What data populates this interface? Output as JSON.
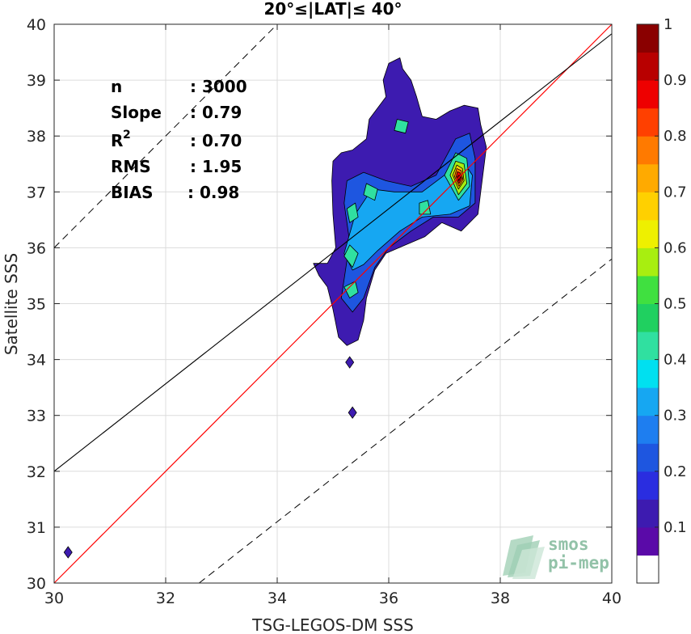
{
  "chart_data": {
    "type": "contour-scatter",
    "title": "20°≤|LAT|≤ 40°",
    "xlabel": "TSG-LEGOS-DM SSS",
    "ylabel": "Satellite SSS",
    "xlim": [
      30,
      40
    ],
    "ylim": [
      30,
      40
    ],
    "xticks": [
      "30",
      "32",
      "34",
      "36",
      "38",
      "40"
    ],
    "yticks": [
      "30",
      "31",
      "32",
      "33",
      "34",
      "35",
      "36",
      "37",
      "38",
      "39",
      "40"
    ],
    "grid": true,
    "stats": [
      {
        "label": "n",
        "value": ": 3000"
      },
      {
        "label": "Slope",
        "value": ": 0.79"
      },
      {
        "label": "R",
        "value": ": 0.70",
        "superscript": "2"
      },
      {
        "label": "RMS",
        "value": ": 1.95"
      },
      {
        "label": "BIAS",
        "value": ": 0.98"
      }
    ],
    "reference_lines": {
      "identity": {
        "slope": 1,
        "intercept": 0,
        "color": "#ff0000",
        "style": "solid"
      },
      "fit": {
        "x": [
          30,
          40
        ],
        "y": [
          32.0,
          39.83
        ],
        "color": "#000000",
        "style": "solid"
      },
      "upper_bound": {
        "x": [
          30,
          34.0
        ],
        "y": [
          36.0,
          40.0
        ],
        "style": "dashed"
      },
      "lower_bound": {
        "x": [
          32.6,
          40
        ],
        "y": [
          30.0,
          35.8
        ],
        "style": "dashed"
      }
    },
    "density_levels": [
      {
        "level": 0.05,
        "color": "#3d1bb0",
        "polygon": [
          [
            34.65,
            35.72
          ],
          [
            34.9,
            35.72
          ],
          [
            35.05,
            36.0
          ],
          [
            35.0,
            36.6
          ],
          [
            34.98,
            37.2
          ],
          [
            35.0,
            37.55
          ],
          [
            35.15,
            37.7
          ],
          [
            35.35,
            37.75
          ],
          [
            35.6,
            37.95
          ],
          [
            35.65,
            38.3
          ],
          [
            35.8,
            38.5
          ],
          [
            35.95,
            38.7
          ],
          [
            35.9,
            39.0
          ],
          [
            36.0,
            39.3
          ],
          [
            36.2,
            39.4
          ],
          [
            36.25,
            39.2
          ],
          [
            36.4,
            39.0
          ],
          [
            36.5,
            38.7
          ],
          [
            36.6,
            38.35
          ],
          [
            36.85,
            38.3
          ],
          [
            37.1,
            38.45
          ],
          [
            37.35,
            38.55
          ],
          [
            37.6,
            38.5
          ],
          [
            37.65,
            38.2
          ],
          [
            37.75,
            37.8
          ],
          [
            37.7,
            37.4
          ],
          [
            37.65,
            37.0
          ],
          [
            37.6,
            36.6
          ],
          [
            37.3,
            36.3
          ],
          [
            36.95,
            36.45
          ],
          [
            36.65,
            36.2
          ],
          [
            36.3,
            36.05
          ],
          [
            35.95,
            35.9
          ],
          [
            35.75,
            35.6
          ],
          [
            35.6,
            35.1
          ],
          [
            35.55,
            34.7
          ],
          [
            35.45,
            34.35
          ],
          [
            35.25,
            34.25
          ],
          [
            35.1,
            34.4
          ],
          [
            35.0,
            34.9
          ],
          [
            34.9,
            35.3
          ],
          [
            34.75,
            35.5
          ]
        ]
      },
      {
        "level": 0.15,
        "color": "#1e56e0",
        "polygon": [
          [
            35.15,
            35.1
          ],
          [
            35.3,
            36.1
          ],
          [
            35.2,
            36.8
          ],
          [
            35.25,
            37.2
          ],
          [
            35.55,
            37.35
          ],
          [
            35.95,
            37.2
          ],
          [
            36.4,
            37.1
          ],
          [
            36.85,
            37.3
          ],
          [
            37.2,
            37.95
          ],
          [
            37.45,
            38.05
          ],
          [
            37.55,
            37.6
          ],
          [
            37.55,
            36.8
          ],
          [
            37.25,
            36.55
          ],
          [
            36.8,
            36.55
          ],
          [
            36.4,
            36.3
          ],
          [
            36.0,
            36.0
          ],
          [
            35.75,
            35.65
          ],
          [
            35.55,
            35.1
          ],
          [
            35.35,
            34.85
          ]
        ]
      },
      {
        "level": 0.3,
        "color": "#16a7f2",
        "polygon": [
          [
            35.2,
            35.9
          ],
          [
            35.4,
            36.6
          ],
          [
            35.7,
            37.05
          ],
          [
            36.1,
            37.0
          ],
          [
            36.6,
            37.0
          ],
          [
            37.0,
            37.3
          ],
          [
            37.3,
            37.6
          ],
          [
            37.5,
            37.3
          ],
          [
            37.45,
            36.75
          ],
          [
            37.1,
            36.6
          ],
          [
            36.6,
            36.55
          ],
          [
            36.2,
            36.3
          ],
          [
            35.8,
            35.95
          ],
          [
            35.55,
            35.7
          ],
          [
            35.35,
            35.6
          ]
        ]
      },
      {
        "level": 0.45,
        "color": "#30e0a0",
        "polygon": [
          [
            35.2,
            35.3
          ],
          [
            35.3,
            35.1
          ],
          [
            35.45,
            35.2
          ],
          [
            35.4,
            35.4
          ]
        ]
      },
      {
        "level": 0.45,
        "color": "#30e0a0",
        "polygon": [
          [
            35.2,
            35.85
          ],
          [
            35.35,
            35.65
          ],
          [
            35.45,
            35.9
          ],
          [
            35.3,
            36.05
          ]
        ]
      },
      {
        "level": 0.45,
        "color": "#30e0a0",
        "polygon": [
          [
            35.3,
            36.45
          ],
          [
            35.45,
            36.55
          ],
          [
            35.4,
            36.8
          ],
          [
            35.25,
            36.7
          ]
        ]
      },
      {
        "level": 0.45,
        "color": "#30e0a0",
        "polygon": [
          [
            35.55,
            36.95
          ],
          [
            35.75,
            36.85
          ],
          [
            35.8,
            37.05
          ],
          [
            35.6,
            37.15
          ]
        ]
      },
      {
        "level": 0.45,
        "color": "#30e0a0",
        "polygon": [
          [
            36.1,
            38.1
          ],
          [
            36.3,
            38.05
          ],
          [
            36.35,
            38.25
          ],
          [
            36.15,
            38.3
          ]
        ]
      },
      {
        "level": 0.45,
        "color": "#30e0a0",
        "polygon": [
          [
            36.55,
            36.6
          ],
          [
            36.75,
            36.6
          ],
          [
            36.7,
            36.85
          ],
          [
            36.55,
            36.8
          ]
        ]
      },
      {
        "level": 0.45,
        "color": "#30e0a0",
        "polygon": [
          [
            37.0,
            37.3
          ],
          [
            37.25,
            36.85
          ],
          [
            37.45,
            37.1
          ],
          [
            37.4,
            37.6
          ],
          [
            37.2,
            37.7
          ]
        ]
      },
      {
        "level": 0.6,
        "color": "#a8ee10",
        "polygon": [
          [
            37.1,
            37.3
          ],
          [
            37.25,
            36.95
          ],
          [
            37.4,
            37.15
          ],
          [
            37.35,
            37.5
          ],
          [
            37.2,
            37.55
          ]
        ]
      },
      {
        "level": 0.7,
        "color": "#ffd000",
        "polygon": [
          [
            37.15,
            37.3
          ],
          [
            37.25,
            37.05
          ],
          [
            37.35,
            37.2
          ],
          [
            37.32,
            37.42
          ],
          [
            37.22,
            37.48
          ]
        ]
      },
      {
        "level": 0.8,
        "color": "#ff7a00",
        "polygon": [
          [
            37.18,
            37.28
          ],
          [
            37.26,
            37.1
          ],
          [
            37.33,
            37.22
          ],
          [
            37.3,
            37.38
          ],
          [
            37.22,
            37.42
          ]
        ]
      },
      {
        "level": 0.9,
        "color": "#ee0000",
        "polygon": [
          [
            37.21,
            37.27
          ],
          [
            37.26,
            37.15
          ],
          [
            37.31,
            37.24
          ],
          [
            37.28,
            37.34
          ],
          [
            37.23,
            37.36
          ]
        ]
      },
      {
        "level": 1.0,
        "color": "#8a0000",
        "polygon": [
          [
            37.23,
            37.27
          ],
          [
            37.26,
            37.2
          ],
          [
            37.29,
            37.26
          ],
          [
            37.26,
            37.3
          ]
        ]
      }
    ],
    "isolated_points": [
      {
        "x": 30.25,
        "y": 30.55,
        "color": "#3d1bb0"
      },
      {
        "x": 35.3,
        "y": 33.95,
        "color": "#3d1bb0"
      },
      {
        "x": 35.35,
        "y": 33.05,
        "color": "#3d1bb0"
      }
    ],
    "colorbar": {
      "ticks": [
        "0.1",
        "0.2",
        "0.3",
        "0.4",
        "0.5",
        "0.6",
        "0.7",
        "0.8",
        "0.9",
        "1"
      ],
      "tick_values": [
        0.1,
        0.2,
        0.3,
        0.4,
        0.5,
        0.6,
        0.7,
        0.8,
        0.9,
        1.0
      ],
      "range": [
        0,
        1
      ],
      "colors": [
        "#ffffff",
        "#5a0aa8",
        "#3d1bb0",
        "#2a2de0",
        "#1e56e0",
        "#1e7ef0",
        "#16a7f2",
        "#00e0f0",
        "#30e0a0",
        "#20d060",
        "#40e040",
        "#a8ee10",
        "#eef000",
        "#ffd000",
        "#ffaa00",
        "#ff7a00",
        "#ff4000",
        "#ee0000",
        "#b80000",
        "#8a0000"
      ]
    },
    "logo": {
      "line1": "smos",
      "line2": "pi-mep"
    }
  }
}
